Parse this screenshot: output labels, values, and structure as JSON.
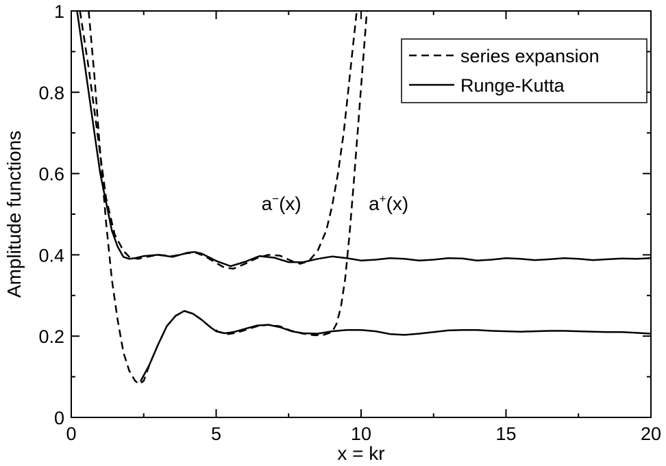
{
  "chart_data": {
    "type": "line",
    "title": "",
    "xlabel": "x = kr",
    "ylabel": "Amplitude functions",
    "xlim": [
      0,
      20
    ],
    "ylim": [
      0,
      1
    ],
    "xticks": [
      0,
      5,
      10,
      15,
      20
    ],
    "yticks": [
      0,
      0.2,
      0.4,
      0.6,
      0.8,
      1
    ],
    "xtick_labels": [
      "0",
      "5",
      "10",
      "15",
      "20"
    ],
    "ytick_labels": [
      "0",
      "0.2",
      "0.4",
      "0.6",
      "0.8",
      "1"
    ],
    "grid": false,
    "legend_position": "top-right",
    "legend": [
      {
        "label": "series expansion",
        "style": "dashed"
      },
      {
        "label": "Runge-Kutta",
        "style": "solid"
      }
    ],
    "annotations": [
      {
        "base": "a",
        "sup": "−",
        "tail": "(x)",
        "x": 7.25,
        "y": 0.51
      },
      {
        "base": "a",
        "sup": "+",
        "tail": "(x)",
        "x": 10.95,
        "y": 0.51
      }
    ],
    "series": [
      {
        "name": "Runge-Kutta",
        "style": "solid",
        "x": [
          0.2,
          0.5,
          0.8,
          1.0,
          1.2,
          1.4,
          1.6,
          1.8,
          2.0,
          2.2,
          2.5,
          3.0,
          3.5,
          4.0,
          4.25,
          4.5,
          5.0,
          5.5,
          6.0,
          6.5,
          7.0,
          7.5,
          8.0,
          8.5,
          9.0,
          9.5,
          10.0,
          10.5,
          11.0,
          11.5,
          12.0,
          12.5,
          13.0,
          13.5,
          14.0,
          14.5,
          15.0,
          15.5,
          16.0,
          16.5,
          17.0,
          17.5,
          18.0,
          18.5,
          19.0,
          19.5,
          20.0
        ],
        "y": [
          1.0,
          0.85,
          0.7,
          0.6,
          0.53,
          0.46,
          0.42,
          0.395,
          0.39,
          0.392,
          0.397,
          0.4,
          0.395,
          0.405,
          0.407,
          0.403,
          0.385,
          0.372,
          0.383,
          0.397,
          0.393,
          0.382,
          0.382,
          0.39,
          0.396,
          0.392,
          0.386,
          0.388,
          0.392,
          0.39,
          0.386,
          0.388,
          0.392,
          0.391,
          0.386,
          0.388,
          0.392,
          0.39,
          0.387,
          0.389,
          0.392,
          0.39,
          0.387,
          0.389,
          0.391,
          0.39,
          0.392
        ]
      },
      {
        "name": "Runge-Kutta",
        "style": "solid",
        "x": [
          2.4,
          2.7,
          3.0,
          3.3,
          3.6,
          3.9,
          4.2,
          4.5,
          4.8,
          5.0,
          5.3,
          5.6,
          6.0,
          6.4,
          6.8,
          7.2,
          7.6,
          8.0,
          8.5,
          9.0,
          9.5,
          10.0,
          10.5,
          11.0,
          11.5,
          12.0,
          12.5,
          13.0,
          13.5,
          14.0,
          14.5,
          15.0,
          15.5,
          16.0,
          16.5,
          17.0,
          17.5,
          18.0,
          18.5,
          19.0,
          19.5,
          20.0
        ],
        "y": [
          0.09,
          0.13,
          0.18,
          0.225,
          0.25,
          0.262,
          0.255,
          0.24,
          0.222,
          0.212,
          0.207,
          0.21,
          0.218,
          0.226,
          0.228,
          0.222,
          0.212,
          0.207,
          0.206,
          0.212,
          0.215,
          0.215,
          0.212,
          0.205,
          0.203,
          0.206,
          0.21,
          0.214,
          0.215,
          0.215,
          0.213,
          0.212,
          0.211,
          0.212,
          0.213,
          0.213,
          0.212,
          0.211,
          0.21,
          0.21,
          0.208,
          0.206
        ]
      },
      {
        "name": "series expansion",
        "style": "dashed",
        "x": [
          0.3,
          0.6,
          0.9,
          1.2,
          1.5,
          1.8,
          2.0,
          2.3,
          2.6,
          3.0,
          3.5,
          4.0,
          4.3,
          4.6,
          5.0,
          5.3,
          5.6,
          6.0,
          6.4,
          6.8,
          7.2,
          7.6,
          7.9,
          8.2,
          8.5,
          8.8,
          9.0,
          9.2,
          9.4,
          9.55,
          9.7,
          9.85
        ],
        "y": [
          1.0,
          0.86,
          0.7,
          0.54,
          0.45,
          0.41,
          0.395,
          0.39,
          0.395,
          0.4,
          0.397,
          0.404,
          0.405,
          0.397,
          0.38,
          0.368,
          0.366,
          0.378,
          0.392,
          0.4,
          0.398,
          0.385,
          0.378,
          0.385,
          0.41,
          0.46,
          0.52,
          0.6,
          0.7,
          0.8,
          0.9,
          1.0
        ]
      },
      {
        "name": "series expansion",
        "style": "dashed",
        "x": [
          0.6,
          0.8,
          1.0,
          1.2,
          1.4,
          1.6,
          1.8,
          2.0,
          2.2,
          2.35,
          2.5,
          2.7,
          3.0,
          3.3,
          3.6,
          3.9,
          4.2,
          4.5,
          4.8,
          5.1,
          5.4,
          5.7,
          6.0,
          6.4,
          6.8,
          7.2,
          7.6,
          8.0,
          8.4,
          8.7,
          9.0,
          9.15,
          9.3,
          9.45,
          9.6,
          9.75,
          9.9,
          10.05,
          10.2
        ],
        "y": [
          1.0,
          0.84,
          0.65,
          0.48,
          0.34,
          0.24,
          0.16,
          0.115,
          0.09,
          0.082,
          0.09,
          0.13,
          0.18,
          0.225,
          0.25,
          0.262,
          0.255,
          0.24,
          0.222,
          0.21,
          0.205,
          0.208,
          0.215,
          0.224,
          0.228,
          0.224,
          0.213,
          0.206,
          0.202,
          0.203,
          0.21,
          0.23,
          0.27,
          0.34,
          0.45,
          0.58,
          0.72,
          0.86,
          1.0
        ]
      }
    ]
  }
}
